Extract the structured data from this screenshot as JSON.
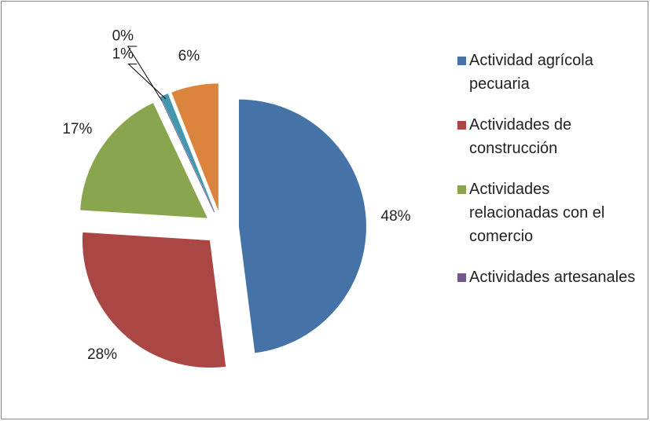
{
  "chart_data": {
    "type": "pie",
    "categories": [
      "Actividad agrícola pecuaria",
      "Actividades de construcción",
      "Actividades relacionadas con el comercio",
      "Actividades artesanales",
      null,
      null
    ],
    "values": [
      48,
      28,
      17,
      0,
      1,
      6
    ],
    "value_labels": [
      "48%",
      "28%",
      "17%",
      "0%",
      "1%",
      "6%"
    ],
    "colors": [
      "#4572a7",
      "#aa4643",
      "#89a54e",
      "#71588f",
      "#4198af",
      "#db843d"
    ],
    "legend": "right"
  }
}
